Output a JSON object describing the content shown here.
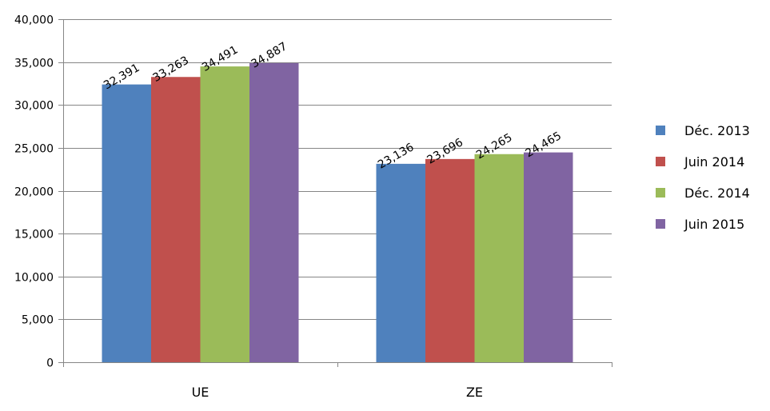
{
  "chart_data": {
    "type": "bar",
    "categories": [
      "UE",
      "ZE"
    ],
    "series": [
      {
        "name": "Déc. 2013",
        "color": "#4f81bd",
        "values": [
          32391,
          23136
        ],
        "labels": [
          "32,391",
          "23,136"
        ]
      },
      {
        "name": "Juin 2014",
        "color": "#c0504d",
        "values": [
          33263,
          23696
        ],
        "labels": [
          "33,263",
          "23,696"
        ]
      },
      {
        "name": "Déc. 2014",
        "color": "#9bbb59",
        "values": [
          34491,
          24265
        ],
        "labels": [
          "34,491",
          "24,265"
        ]
      },
      {
        "name": "Juin 2015",
        "color": "#8064a2",
        "values": [
          34887,
          24465
        ],
        "labels": [
          "34,887",
          "24,465"
        ]
      }
    ],
    "ylim": [
      0,
      40000
    ],
    "yticks": [
      0,
      5000,
      10000,
      15000,
      20000,
      25000,
      30000,
      35000,
      40000
    ],
    "ytick_labels": [
      "0",
      "5,000",
      "10,000",
      "15,000",
      "20,000",
      "25,000",
      "30,000",
      "35,000",
      "40,000"
    ],
    "grid": true,
    "legend_position": "right",
    "title": "",
    "xlabel": "",
    "ylabel": ""
  }
}
